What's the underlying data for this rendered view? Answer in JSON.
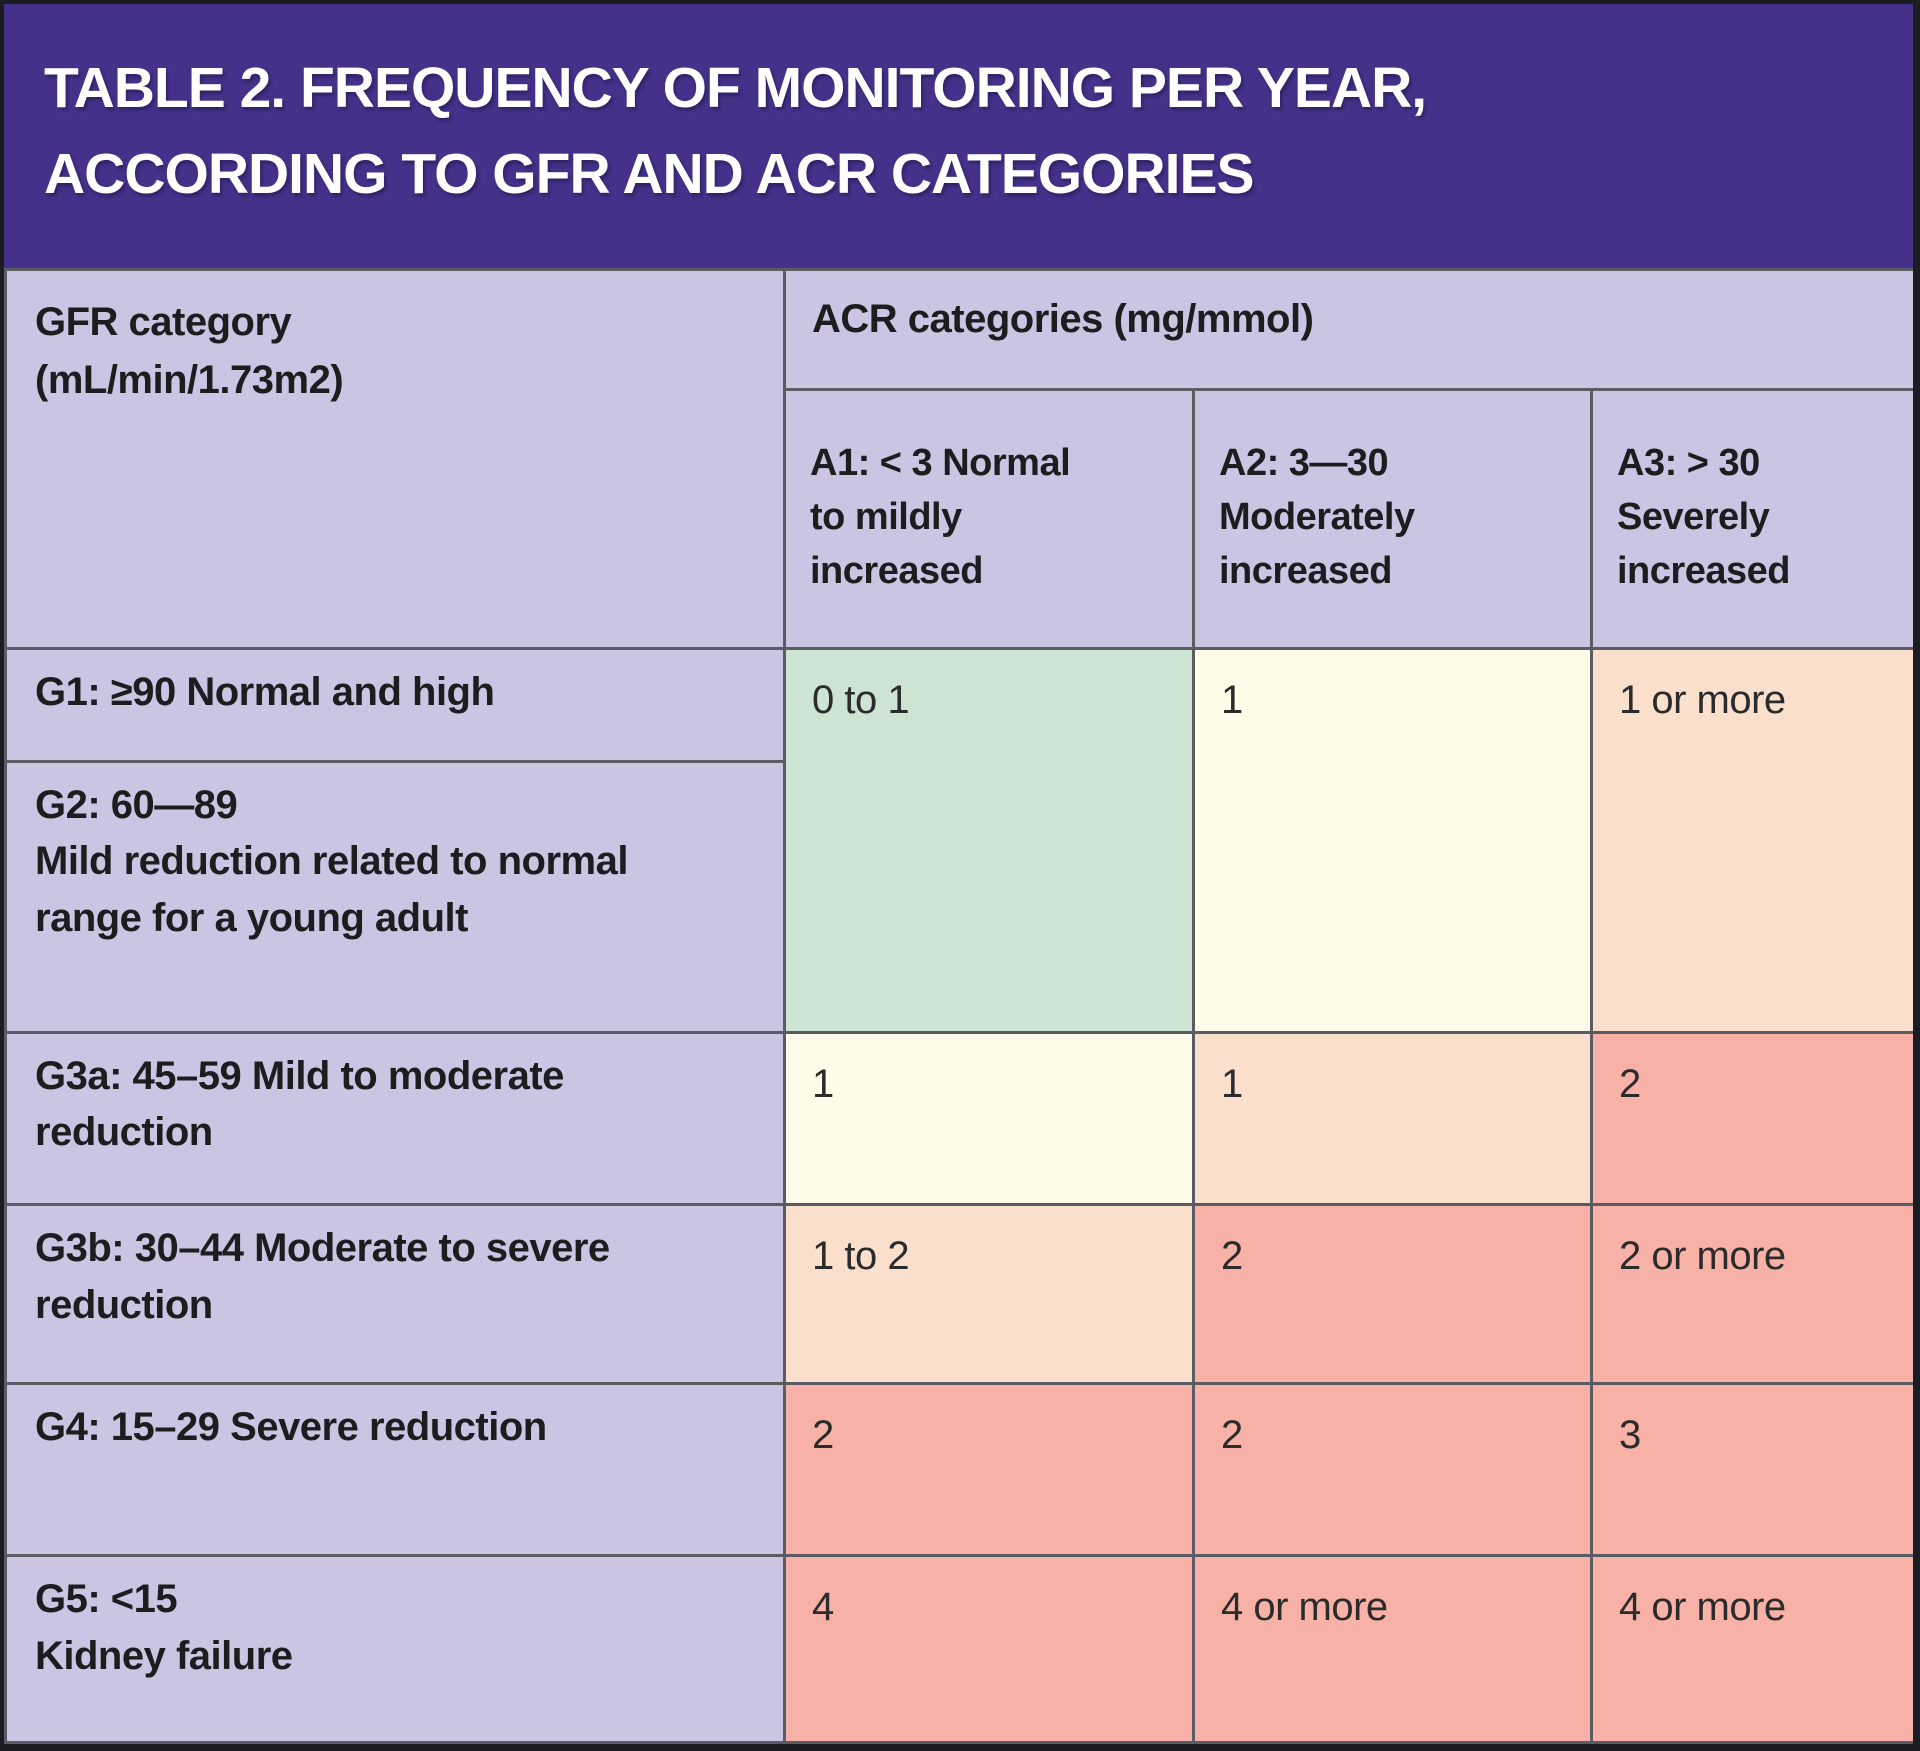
{
  "title": {
    "line1": "TABLE 2. FREQUENCY OF MONITORING PER YEAR,",
    "line2": "ACCORDING TO GFR AND ACR CATEGORIES"
  },
  "headers": {
    "gfr_line1": "GFR category",
    "gfr_line2": "(mL/min/1.73m2)",
    "acr": "ACR categories (mg/mmol)",
    "columns": [
      {
        "line1": "A1: < 3 Normal",
        "line2": "to mildly",
        "line3": "increased"
      },
      {
        "line1": "A2: 3—30",
        "line2": "Moderately",
        "line3": "increased"
      },
      {
        "line1": "A3: > 30",
        "line2": "Severely",
        "line3": "increased"
      }
    ]
  },
  "rows": [
    {
      "id": "g1",
      "label_lines": [
        "G1: ≥90 Normal and high"
      ],
      "cells": [
        {
          "value": "0 to 1",
          "color": "green"
        },
        {
          "value": "1",
          "color": "cream"
        },
        {
          "value": "1 or more",
          "color": "peach"
        }
      ]
    },
    {
      "id": "g2",
      "label_lines": [
        "G2: 60—89",
        "Mild reduction related to normal",
        "range for a young adult"
      ],
      "cells": []
    },
    {
      "id": "g3a",
      "label_lines": [
        "G3a: 45–59 Mild to moderate",
        "reduction"
      ],
      "cells": [
        {
          "value": "1",
          "color": "cream"
        },
        {
          "value": "1",
          "color": "peach"
        },
        {
          "value": "2",
          "color": "salmon"
        }
      ]
    },
    {
      "id": "g3b",
      "label_lines": [
        "G3b: 30–44 Moderate to severe",
        "reduction"
      ],
      "cells": [
        {
          "value": "1 to 2",
          "color": "peach"
        },
        {
          "value": "2",
          "color": "salmon"
        },
        {
          "value": "2 or more",
          "color": "salmon"
        }
      ]
    },
    {
      "id": "g4",
      "label_lines": [
        "G4: 15–29 Severe reduction"
      ],
      "cells": [
        {
          "value": "2",
          "color": "salmon"
        },
        {
          "value": "2",
          "color": "salmon"
        },
        {
          "value": "3",
          "color": "salmon"
        }
      ]
    },
    {
      "id": "g5",
      "label_lines": [
        "G5: <15",
        "Kidney failure"
      ],
      "cells": [
        {
          "value": "4",
          "color": "salmon"
        },
        {
          "value": "4 or more",
          "color": "salmon"
        },
        {
          "value": "4 or more",
          "color": "salmon"
        }
      ]
    }
  ],
  "colors": {
    "purple_band": "#453189",
    "lavender": "#cbc5e3",
    "green": "#cde4d3",
    "cream": "#fffbe9",
    "peach": "#fbdfcd",
    "salmon": "#f7b1a6",
    "grid_line": "#5b5b63",
    "outer_border": "#1c1c24",
    "title_text": "#ffffff",
    "header_text": "#1d1d1f",
    "value_text": "#2b2b2b"
  }
}
